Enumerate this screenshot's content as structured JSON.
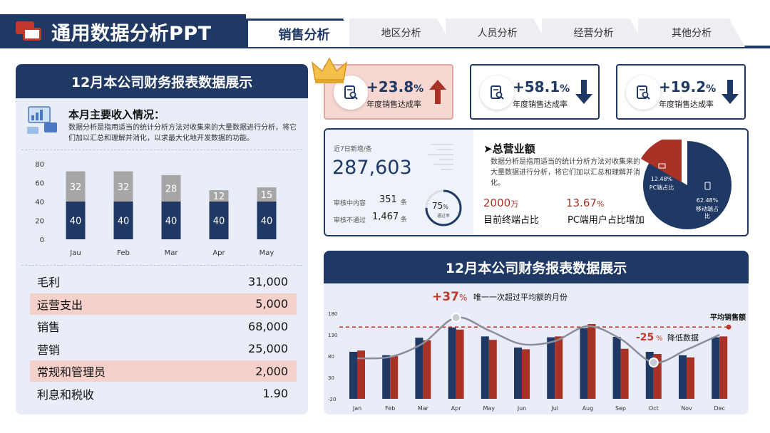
{
  "header": {
    "title": "通用数据分析PPT",
    "tabs": [
      "销售分析",
      "地区分析",
      "人员分析",
      "经营分析",
      "其他分析"
    ]
  },
  "left_panel": {
    "heading": "12月本公司财务报表数据展示",
    "income_title": "本月主要收入情况：",
    "income_desc": "数据分析是指用适当的统计分析方法对收集来的大量数据进行分析，将它们加以汇总和理解并消化，以求最大化地开发数据的功能。",
    "financials": [
      {
        "label": "毛利",
        "value": "31,000",
        "highlight": false
      },
      {
        "label": "运营支出",
        "value": "5,000",
        "highlight": true
      },
      {
        "label": "销售",
        "value": "68,000",
        "highlight": false
      },
      {
        "label": "营销",
        "value": "25,000",
        "highlight": false
      },
      {
        "label": "常规和管理员",
        "value": "2,000",
        "highlight": true
      },
      {
        "label": "利息和税收",
        "value": "1.90",
        "highlight": false
      }
    ]
  },
  "kpis": [
    {
      "value": "+23.8",
      "unit": "%",
      "label": "年度销售达成率",
      "direction": "up",
      "highlight": true
    },
    {
      "value": "+58.1",
      "unit": "%",
      "label": "年度销售达成率",
      "direction": "down",
      "highlight": false
    },
    {
      "value": "+19.2",
      "unit": "%",
      "label": "年度销售达成率",
      "direction": "down",
      "highlight": false
    }
  ],
  "summary": {
    "recent_label": "近7日新增/条",
    "recent_value": "287,603",
    "review_label": "审核中内容",
    "review_value": "351",
    "review_unit": "条",
    "reject_label": "审核不通过",
    "reject_value": "1,467",
    "reject_unit": "条",
    "pass_rate": "75",
    "pass_unit": "%",
    "pass_label": "通过率",
    "total_title": "总营业额",
    "total_desc": "数据分析是指用适当的统计分析方法对收集来的大量数据进行分析，将它们加以汇总和理解并消化。",
    "stat1_value": "2000",
    "stat1_unit": "万",
    "stat1_label": "目前终端占比",
    "stat2_value": "13.67",
    "stat2_unit": "%",
    "stat2_label": "PC端用户占比增加"
  },
  "right_panel": {
    "heading": "12月本公司财务报表数据展示",
    "annotation_up_value": "+37",
    "annotation_up_unit": "%",
    "annotation_up_text": "唯一一次超过平均额的月份",
    "annotation_down_value": "-25",
    "annotation_down_unit": "%",
    "annotation_down_text": "降低数据",
    "avg_label": "平均销售额"
  },
  "colors": {
    "navy": "#1f3864",
    "red": "#a93226",
    "gray": "#a6a6a6",
    "pink": "#f5d1cc"
  },
  "chart_data": [
    {
      "type": "bar",
      "stacked": true,
      "categories": [
        "Jau",
        "Feb",
        "Mar",
        "Apr",
        "May"
      ],
      "series": [
        {
          "values": [
            40,
            40,
            40,
            40,
            40
          ]
        },
        {
          "values": [
            32,
            32,
            28,
            12,
            15
          ]
        }
      ],
      "yticks": [
        0,
        20,
        40,
        60,
        80
      ],
      "ylim": [
        0,
        80
      ]
    },
    {
      "type": "pie",
      "slices": [
        {
          "label": "PC端占比",
          "value": 12.48,
          "display": "12.48%"
        },
        {
          "label": "移动端占比",
          "value": 62.48,
          "display": "62.48%"
        }
      ]
    },
    {
      "type": "bar",
      "categories": [
        "Jan",
        "Feb",
        "Mar",
        "Apr",
        "May",
        "Jun",
        "Jul",
        "Aug",
        "Sep",
        "Oct",
        "Nov",
        "Dec"
      ],
      "series": [
        {
          "values": [
            90,
            82,
            123,
            147,
            126,
            100,
            124,
            145,
            125,
            90,
            82,
            124
          ]
        },
        {
          "values": [
            93,
            80,
            117,
            142,
            118,
            96,
            126,
            155,
            97,
            85,
            77,
            126
          ]
        }
      ],
      "line": [
        75,
        78,
        110,
        170,
        140,
        108,
        115,
        150,
        120,
        65,
        95,
        130
      ],
      "average": 148,
      "yticks": [
        -20,
        30,
        80,
        130,
        180
      ],
      "ylim": [
        -20,
        180
      ]
    }
  ]
}
